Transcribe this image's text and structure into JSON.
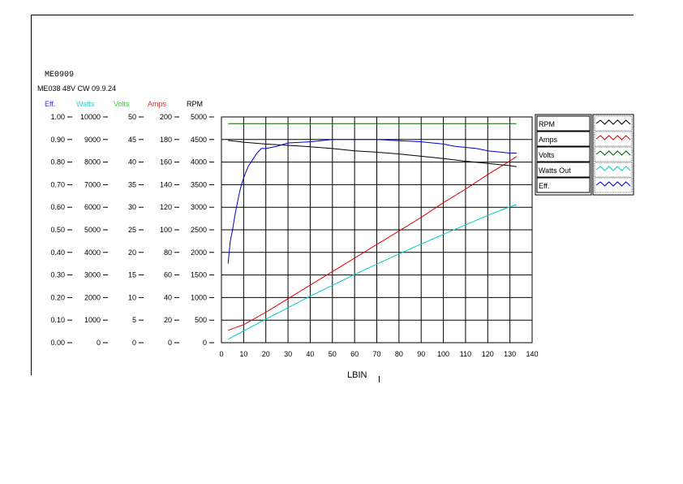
{
  "chart_data": {
    "type": "line",
    "title": "ME0909",
    "subtitle": "ME038 48V CW 09.9.24",
    "xlabel": "LBIN",
    "xlim": [
      0,
      140
    ],
    "x_ticks": [
      0,
      10,
      20,
      30,
      40,
      50,
      60,
      70,
      80,
      90,
      100,
      110,
      120,
      130,
      140
    ],
    "grid": true,
    "legend_position": "right",
    "axes": [
      {
        "label": "Eff.",
        "color": "#3333cc",
        "ylim": [
          0,
          1
        ],
        "ticks": [
          "0.00",
          "0.10",
          "0.20",
          "0.30",
          "0.40",
          "0.50",
          "0.60",
          "0.70",
          "0.80",
          "0.90",
          "1.00"
        ]
      },
      {
        "label": "Watts",
        "color": "#33cccc",
        "ylim": [
          0,
          10000
        ],
        "ticks": [
          "0",
          "1000",
          "2000",
          "3000",
          "4000",
          "5000",
          "6000",
          "7000",
          "8000",
          "9000",
          "10000"
        ]
      },
      {
        "label": "Volts",
        "color": "#33cc33",
        "ylim": [
          0,
          50
        ],
        "ticks": [
          "0",
          "5",
          "10",
          "15",
          "20",
          "25",
          "30",
          "35",
          "40",
          "45",
          "50"
        ]
      },
      {
        "label": "Amps",
        "color": "#cc3333",
        "ylim": [
          0,
          200
        ],
        "ticks": [
          "0",
          "20",
          "40",
          "60",
          "80",
          "100",
          "120",
          "140",
          "160",
          "180",
          "200"
        ]
      },
      {
        "label": "RPM",
        "color": "#000000",
        "ylim": [
          0,
          5000
        ],
        "ticks": [
          "0",
          "500",
          "1000",
          "1500",
          "2000",
          "2500",
          "3000",
          "3500",
          "4000",
          "4500",
          "5000"
        ]
      }
    ],
    "legend": [
      "RPM",
      "Amps",
      "Volts",
      "Watts Out",
      "Eff."
    ],
    "series": [
      {
        "name": "RPM",
        "axis": 4,
        "color": "#000000",
        "x": [
          3,
          10,
          20,
          30,
          40,
          50,
          60,
          70,
          80,
          90,
          100,
          110,
          120,
          130,
          133
        ],
        "y": [
          4480,
          4440,
          4400,
          4370,
          4340,
          4300,
          4250,
          4220,
          4180,
          4130,
          4080,
          4020,
          3970,
          3920,
          3900
        ]
      },
      {
        "name": "Amps",
        "axis": 3,
        "color": "#dd0000",
        "x": [
          3,
          10,
          20,
          30,
          40,
          50,
          60,
          70,
          80,
          90,
          100,
          110,
          120,
          130,
          133
        ],
        "y": [
          11,
          16,
          27,
          39,
          51,
          63,
          75,
          87,
          99,
          111,
          124,
          136,
          149,
          161,
          165
        ]
      },
      {
        "name": "Volts",
        "axis": 2,
        "color": "#006600",
        "x": [
          3,
          133
        ],
        "y": [
          48.5,
          48.5
        ]
      },
      {
        "name": "Watts Out",
        "axis": 1,
        "color": "#00cccc",
        "x": [
          3,
          10,
          20,
          30,
          40,
          50,
          60,
          70,
          80,
          90,
          100,
          110,
          120,
          130,
          133
        ],
        "y": [
          150,
          520,
          1040,
          1550,
          2060,
          2540,
          3020,
          3480,
          3930,
          4370,
          4800,
          5220,
          5640,
          6020,
          6120
        ]
      },
      {
        "name": "Eff.",
        "axis": 0,
        "color": "#0000cc",
        "x": [
          3,
          4,
          5,
          6,
          7,
          8,
          9,
          10,
          12,
          14,
          16,
          18,
          20,
          25,
          30,
          40,
          50,
          60,
          70,
          80,
          90,
          95,
          100,
          105,
          110,
          115,
          120,
          125,
          130,
          133
        ],
        "y": [
          0.35,
          0.45,
          0.5,
          0.56,
          0.61,
          0.66,
          0.7,
          0.73,
          0.78,
          0.81,
          0.84,
          0.86,
          0.86,
          0.87,
          0.885,
          0.89,
          0.9,
          0.9,
          0.9,
          0.895,
          0.89,
          0.885,
          0.88,
          0.87,
          0.865,
          0.86,
          0.85,
          0.845,
          0.84,
          0.84
        ]
      }
    ]
  }
}
